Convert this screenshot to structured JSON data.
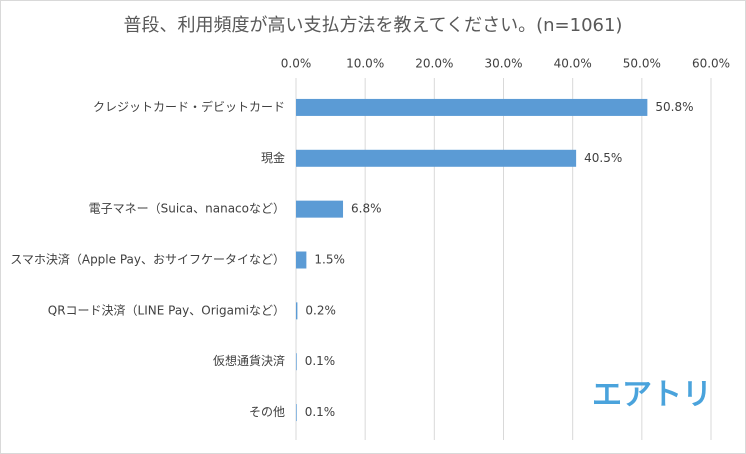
{
  "chart_data": {
    "type": "bar",
    "orientation": "horizontal",
    "title": "普段、利用頻度が高い支払方法を教えてください。(n=1061)",
    "categories": [
      "クレジットカード・デビットカード",
      "現金",
      "電子マネー（Suica、nanacoなど）",
      "スマホ決済（Apple Pay、おサイフケータイなど）",
      "QRコード決済（LINE Pay、Origamiなど）",
      "仮想通貨決済",
      "その他"
    ],
    "values": [
      50.8,
      40.5,
      6.8,
      1.5,
      0.2,
      0.1,
      0.1
    ],
    "value_labels": [
      "50.8%",
      "40.5%",
      "6.8%",
      "1.5%",
      "0.2%",
      "0.1%",
      "0.1%"
    ],
    "color": "#5b9bd5",
    "xlim": [
      0,
      60
    ],
    "xticks": [
      {
        "value": 0,
        "label": "0.0%"
      },
      {
        "value": 10,
        "label": "10.0%"
      },
      {
        "value": 20,
        "label": "20.0%"
      },
      {
        "value": 30,
        "label": "30.0%"
      },
      {
        "value": 40,
        "label": "40.0%"
      },
      {
        "value": 50,
        "label": "50.0%"
      },
      {
        "value": 60,
        "label": "60.0%"
      }
    ],
    "grid": true,
    "logo": "エアトリ"
  }
}
